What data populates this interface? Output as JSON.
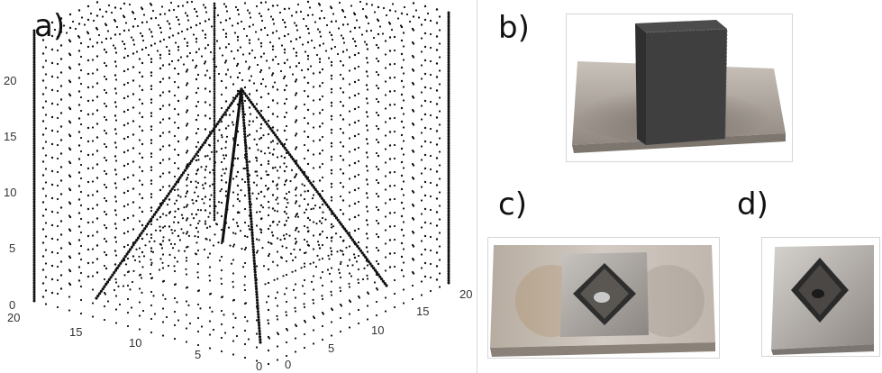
{
  "labels": {
    "a": "a)",
    "b": "b)",
    "c": "c)",
    "d": "d)"
  },
  "plot": {
    "z_ticks": [
      "0",
      "5",
      "10",
      "15",
      "20"
    ],
    "left_axis_ticks": [
      "20",
      "15",
      "10",
      "5",
      "0"
    ],
    "right_axis_ticks": [
      "0",
      "5",
      "10",
      "15",
      "20"
    ]
  },
  "colors": {
    "points": "#111111",
    "frame": "#d9d9d9",
    "metal": "#9b9590",
    "dark_part": "#3a3a3a"
  }
}
